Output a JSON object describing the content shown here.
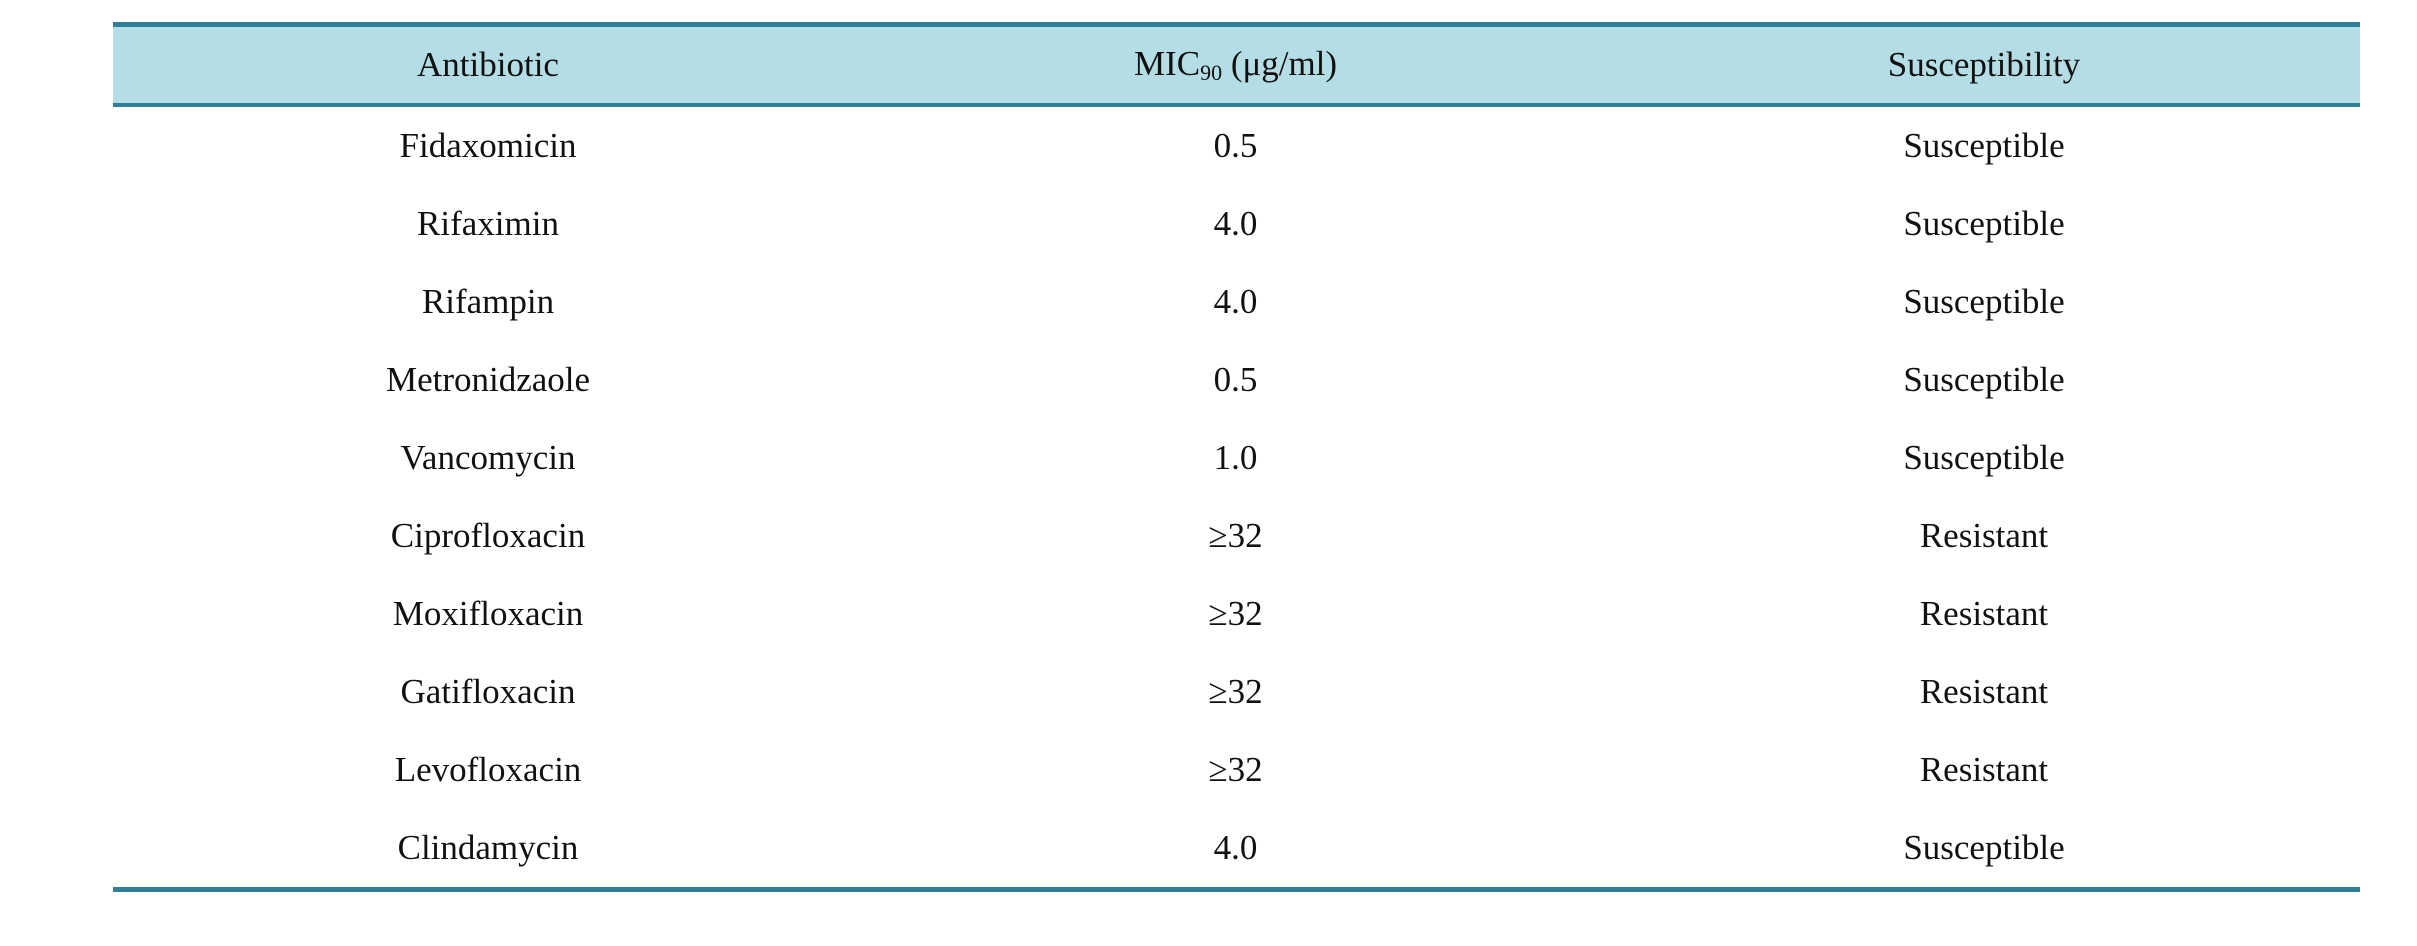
{
  "table": {
    "headers": {
      "antibiotic": "Antibiotic",
      "mic_main": "MIC",
      "mic_sub": "90",
      "mic_unit": " (μg/ml)",
      "susceptibility": "Susceptibility"
    },
    "rows": [
      {
        "antibiotic": "Fidaxomicin",
        "mic": "0.5",
        "susceptibility": "Susceptible"
      },
      {
        "antibiotic": "Rifaximin",
        "mic": "4.0",
        "susceptibility": "Susceptible"
      },
      {
        "antibiotic": "Rifampin",
        "mic": "4.0",
        "susceptibility": "Susceptible"
      },
      {
        "antibiotic": "Metronidzaole",
        "mic": "0.5",
        "susceptibility": "Susceptible"
      },
      {
        "antibiotic": "Vancomycin",
        "mic": "1.0",
        "susceptibility": "Susceptible"
      },
      {
        "antibiotic": "Ciprofloxacin",
        "mic": "≥32",
        "susceptibility": "Resistant"
      },
      {
        "antibiotic": "Moxifloxacin",
        "mic": "≥32",
        "susceptibility": "Resistant"
      },
      {
        "antibiotic": "Gatifloxacin",
        "mic": "≥32",
        "susceptibility": "Resistant"
      },
      {
        "antibiotic": "Levofloxacin",
        "mic": "≥32",
        "susceptibility": "Resistant"
      },
      {
        "antibiotic": "Clindamycin",
        "mic": "4.0",
        "susceptibility": "Susceptible"
      }
    ]
  },
  "colors": {
    "header_background": "#b4dde5",
    "rule": "#2f7f97"
  }
}
